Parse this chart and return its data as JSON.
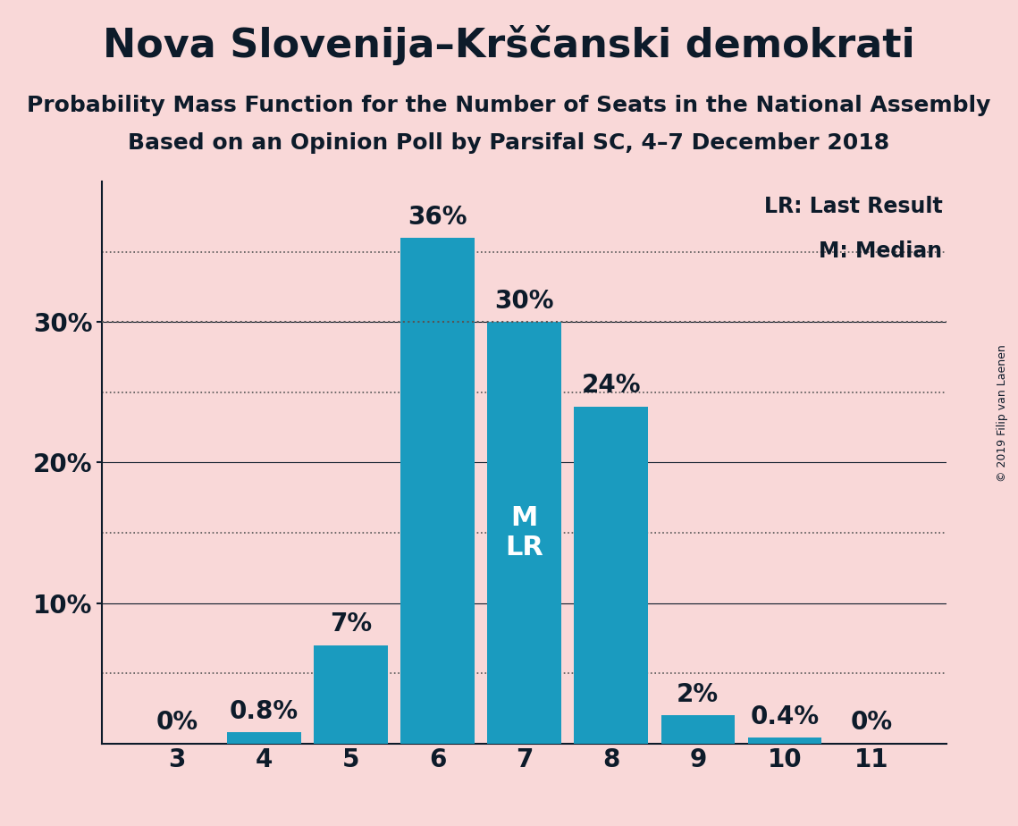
{
  "title": "Nova Slovenija–Krščanski demokrati",
  "subtitle1": "Probability Mass Function for the Number of Seats in the National Assembly",
  "subtitle2": "Based on an Opinion Poll by Parsifal SC, 4–7 December 2018",
  "copyright": "© 2019 Filip van Laenen",
  "categories": [
    3,
    4,
    5,
    6,
    7,
    8,
    9,
    10,
    11
  ],
  "values": [
    0.0,
    0.8,
    7.0,
    36.0,
    30.0,
    24.0,
    2.0,
    0.4,
    0.0
  ],
  "labels": [
    "0%",
    "0.8%",
    "7%",
    "36%",
    "30%",
    "24%",
    "2%",
    "0.4%",
    "0%"
  ],
  "bar_color": "#1a9bbf",
  "background_color": "#f9d8d8",
  "text_color": "#0d1b2a",
  "median_seat": 7,
  "lr_seat": 7,
  "median_line_y": 30.0,
  "dotted_line_color": "#555555",
  "solid_line_color": "#0d1b2a",
  "legend_lr": "LR: Last Result",
  "legend_m": "M: Median",
  "ylim": [
    0,
    40
  ],
  "solid_yticks": [
    10,
    20,
    30
  ],
  "dotted_yticks": [
    5,
    15,
    25,
    35
  ],
  "ytick_labels": [
    "10%",
    "20%",
    "30%"
  ],
  "title_fontsize": 32,
  "subtitle_fontsize": 18,
  "tick_fontsize": 20,
  "bar_label_fontsize": 20,
  "legend_fontsize": 17,
  "copyright_fontsize": 9,
  "ml_label_fontsize": 22
}
